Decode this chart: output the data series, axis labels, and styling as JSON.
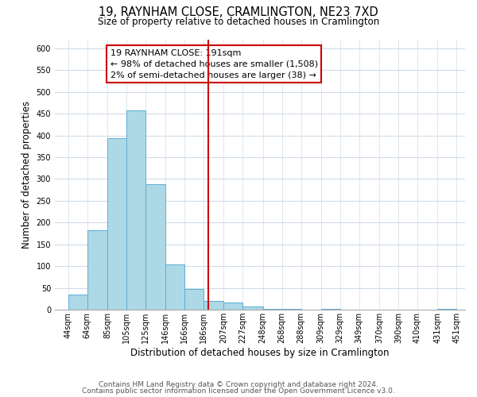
{
  "title": "19, RAYNHAM CLOSE, CRAMLINGTON, NE23 7XD",
  "subtitle": "Size of property relative to detached houses in Cramlington",
  "xlabel": "Distribution of detached houses by size in Cramlington",
  "ylabel": "Number of detached properties",
  "bar_left_edges": [
    44,
    64,
    85,
    105,
    125,
    146,
    166,
    186,
    207,
    227,
    248,
    268,
    288,
    309,
    329,
    349,
    370,
    390,
    410,
    431
  ],
  "bar_widths": [
    20,
    21,
    20,
    20,
    21,
    20,
    20,
    21,
    20,
    21,
    20,
    20,
    21,
    20,
    20,
    21,
    20,
    20,
    21,
    20
  ],
  "bar_heights": [
    35,
    183,
    394,
    458,
    288,
    104,
    48,
    20,
    16,
    7,
    1,
    1,
    0,
    1,
    0,
    0,
    0,
    0,
    0,
    1
  ],
  "bar_color": "#add8e6",
  "bar_edge_color": "#5bafd6",
  "property_line_x": 191,
  "property_line_color": "#cc0000",
  "ylim": [
    0,
    620
  ],
  "xlim": [
    30,
    460
  ],
  "tick_labels": [
    "44sqm",
    "64sqm",
    "85sqm",
    "105sqm",
    "125sqm",
    "146sqm",
    "166sqm",
    "186sqm",
    "207sqm",
    "227sqm",
    "248sqm",
    "268sqm",
    "288sqm",
    "309sqm",
    "329sqm",
    "349sqm",
    "370sqm",
    "390sqm",
    "410sqm",
    "431sqm",
    "451sqm"
  ],
  "tick_positions": [
    44,
    64,
    85,
    105,
    125,
    146,
    166,
    186,
    207,
    227,
    248,
    268,
    288,
    309,
    329,
    349,
    370,
    390,
    410,
    431,
    451
  ],
  "annotation_title": "19 RAYNHAM CLOSE: 191sqm",
  "annotation_line1": "← 98% of detached houses are smaller (1,508)",
  "annotation_line2": "2% of semi-detached houses are larger (38) →",
  "annotation_box_color": "#ffffff",
  "annotation_box_edge": "#cc0000",
  "footer1": "Contains HM Land Registry data © Crown copyright and database right 2024.",
  "footer2": "Contains public sector information licensed under the Open Government Licence v3.0.",
  "background_color": "#ffffff",
  "grid_color": "#d0dce8",
  "title_fontsize": 10.5,
  "subtitle_fontsize": 8.5,
  "axis_label_fontsize": 8.5,
  "tick_fontsize": 7,
  "annotation_fontsize": 8,
  "footer_fontsize": 6.5
}
